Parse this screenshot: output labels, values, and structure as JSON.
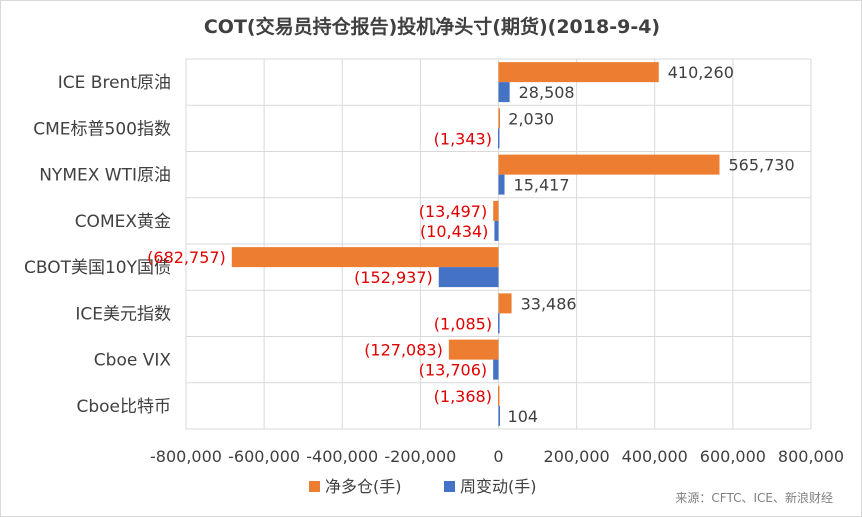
{
  "chart_data": {
    "type": "bar",
    "orientation": "horizontal",
    "title": "COT(交易员持仓报告)投机净头寸(期货)(2018-9-4)",
    "categories": [
      "ICE Brent原油",
      "CME标普500指数",
      "NYMEX WTI原油",
      "COMEX黄金",
      "CBOT美国10Y国债",
      "ICE美元指数",
      "Cboe VIX",
      "Cboe比特币"
    ],
    "series": [
      {
        "name": "净多仓(手)",
        "color": "#ed7d31",
        "values": [
          410260,
          2030,
          565730,
          -13497,
          -682757,
          33486,
          -127083,
          -1368
        ],
        "labels": [
          "410,260",
          "2,030",
          "565,730",
          "(13,497)",
          "(682,757)",
          "33,486",
          "(127,083)",
          "(1,368)"
        ]
      },
      {
        "name": "周变动(手)",
        "color": "#4472c4",
        "values": [
          28508,
          -1343,
          15417,
          -10434,
          -152937,
          -1085,
          -13706,
          104
        ],
        "labels": [
          "28,508",
          "(1,343)",
          "15,417",
          "(10,434)",
          "(152,937)",
          "(1,085)",
          "(13,706)",
          "104"
        ]
      }
    ],
    "xlim": [
      -800000,
      800000
    ],
    "xticks": [
      -800000,
      -600000,
      -400000,
      -200000,
      0,
      200000,
      400000,
      600000,
      800000
    ],
    "xtick_labels": [
      "-800,000",
      "-600,000",
      "-400,000",
      "-200,000",
      "0",
      "200,000",
      "400,000",
      "600,000",
      "800,000"
    ],
    "grid": true,
    "legend_position": "bottom",
    "negative_label_color": "#e00000",
    "source": "来源：CFTC、ICE、新浪财经"
  }
}
